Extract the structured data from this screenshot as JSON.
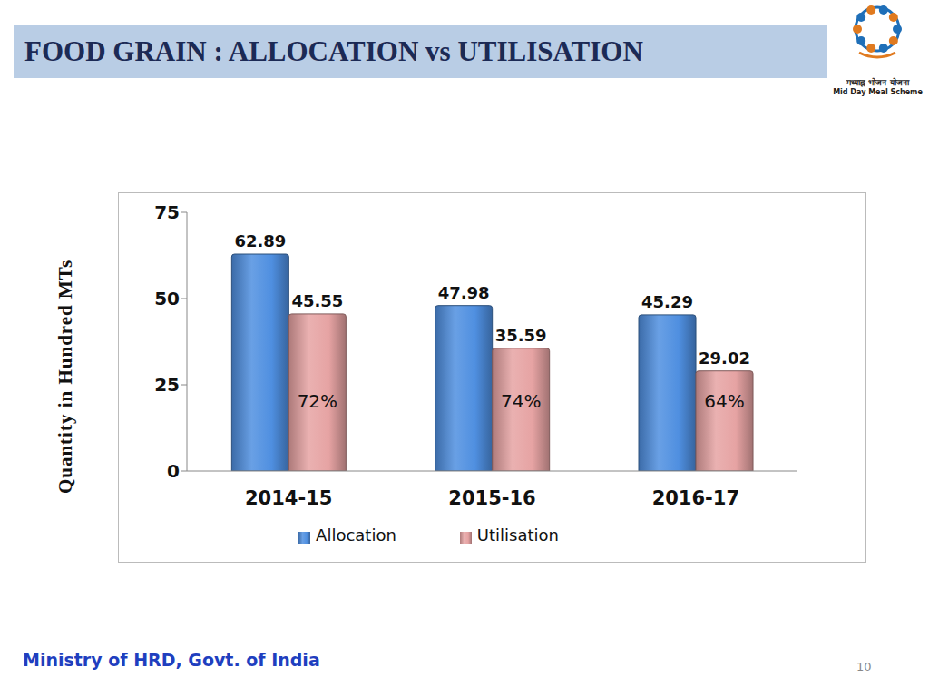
{
  "chart_data": {
    "type": "bar",
    "title": "FOOD GRAIN : ALLOCATION vs UTILISATION",
    "y_label": "Quantity in Hundred MTs",
    "categories": [
      "2014-15",
      "2015-16",
      "2016-17"
    ],
    "series": [
      {
        "name": "Allocation",
        "color": "#4f8fe0",
        "values": [
          62.89,
          47.98,
          45.29
        ]
      },
      {
        "name": "Utilisation",
        "color": "#e6a3a3",
        "values": [
          45.55,
          35.59,
          29.02
        ],
        "annotations": [
          "72%",
          "74%",
          "64%"
        ]
      }
    ],
    "ylim": [
      0,
      75
    ],
    "yticks": [
      0,
      25,
      50,
      75
    ],
    "grid": false,
    "legend": "bottom",
    "data_labels": true
  },
  "slide": {
    "logo_text": [
      "मध्याह्न भोजन योजना",
      "Mid Day Meal Scheme"
    ],
    "footer": "Ministry of HRD, Govt. of India",
    "page_number": "10"
  }
}
